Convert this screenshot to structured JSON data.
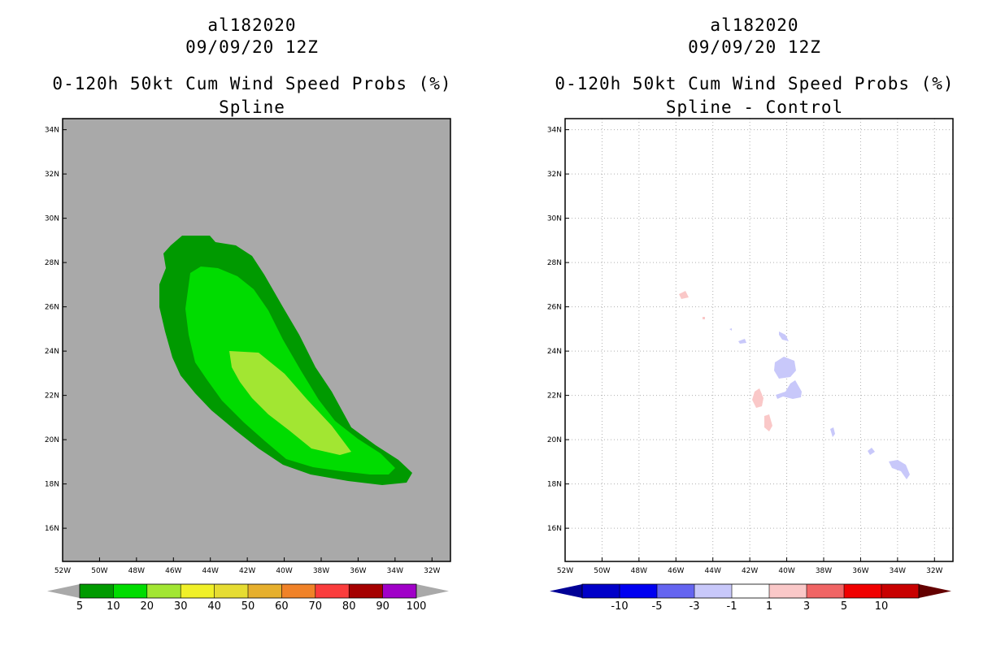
{
  "left_panel": {
    "storm_id": "al182020",
    "datetime": "09/09/20 12Z",
    "product": "0-120h 50kt Cum Wind Speed Probs (%)",
    "subtitle": "Spline",
    "background_color": "#a9a9a9",
    "legend": {
      "labels": [
        "5",
        "10",
        "20",
        "30",
        "40",
        "50",
        "60",
        "70",
        "80",
        "90",
        "100"
      ],
      "colors": [
        "#009a00",
        "#00dc00",
        "#a2e632",
        "#f0f028",
        "#e6dc32",
        "#e6af2d",
        "#f08228",
        "#fa3c3c",
        "#a50000",
        "#a000c8"
      ],
      "arrow_color": "#a9a9a9"
    },
    "probability_contours": [
      {
        "min_pct": 5,
        "color": "#009a00"
      },
      {
        "min_pct": 10,
        "color": "#00dc00"
      },
      {
        "min_pct": 20,
        "color": "#a2e632"
      }
    ]
  },
  "right_panel": {
    "storm_id": "al182020",
    "datetime": "09/09/20 12Z",
    "product": "0-120h 50kt Cum Wind Speed Probs (%)",
    "subtitle": "Spline - Control",
    "background_color": "#ffffff",
    "legend": {
      "labels": [
        "-10",
        "-5",
        "-3",
        "-1",
        "1",
        "3",
        "5",
        "10"
      ],
      "colors": [
        "#0000c8",
        "#0000f0",
        "#6464f0",
        "#c8c8fa",
        "#ffffff",
        "#fac8c8",
        "#f06464",
        "#f00000",
        "#c80000"
      ],
      "left_arrow_color": "#000096",
      "right_arrow_color": "#640000"
    },
    "difference_blobs": [
      {
        "sign": "positive",
        "color": "#fac8c8",
        "lon": -45.8,
        "lat": 26.5
      },
      {
        "sign": "positive",
        "color": "#fac8c8",
        "lon": -41.6,
        "lat": 21.9
      },
      {
        "sign": "positive",
        "color": "#fac8c8",
        "lon": -40.9,
        "lat": 20.9
      },
      {
        "sign": "negative",
        "color": "#c8c8fa",
        "lon": -40.2,
        "lat": 23.2
      },
      {
        "sign": "negative",
        "color": "#c8c8fa",
        "lon": -40.1,
        "lat": 24.8
      },
      {
        "sign": "negative",
        "color": "#c8c8fa",
        "lon": -39.7,
        "lat": 22.3
      },
      {
        "sign": "negative",
        "color": "#c8c8fa",
        "lon": -42.3,
        "lat": 24.5
      },
      {
        "sign": "negative",
        "color": "#c8c8fa",
        "lon": -37.7,
        "lat": 20.4
      },
      {
        "sign": "negative",
        "color": "#c8c8fa",
        "lon": -35.7,
        "lat": 19.5
      },
      {
        "sign": "negative",
        "color": "#c8c8fa",
        "lon": -33.6,
        "lat": 18.6
      }
    ]
  },
  "map_axes": {
    "lon_labels": [
      "52W",
      "50W",
      "48W",
      "46W",
      "44W",
      "42W",
      "40W",
      "38W",
      "36W",
      "34W",
      "32W"
    ],
    "lat_labels": [
      "16N",
      "18N",
      "20N",
      "22N",
      "24N",
      "26N",
      "28N",
      "30N",
      "32N",
      "34N"
    ],
    "lon_range": [
      -52,
      -31
    ],
    "lat_range": [
      14.5,
      34.5
    ]
  }
}
